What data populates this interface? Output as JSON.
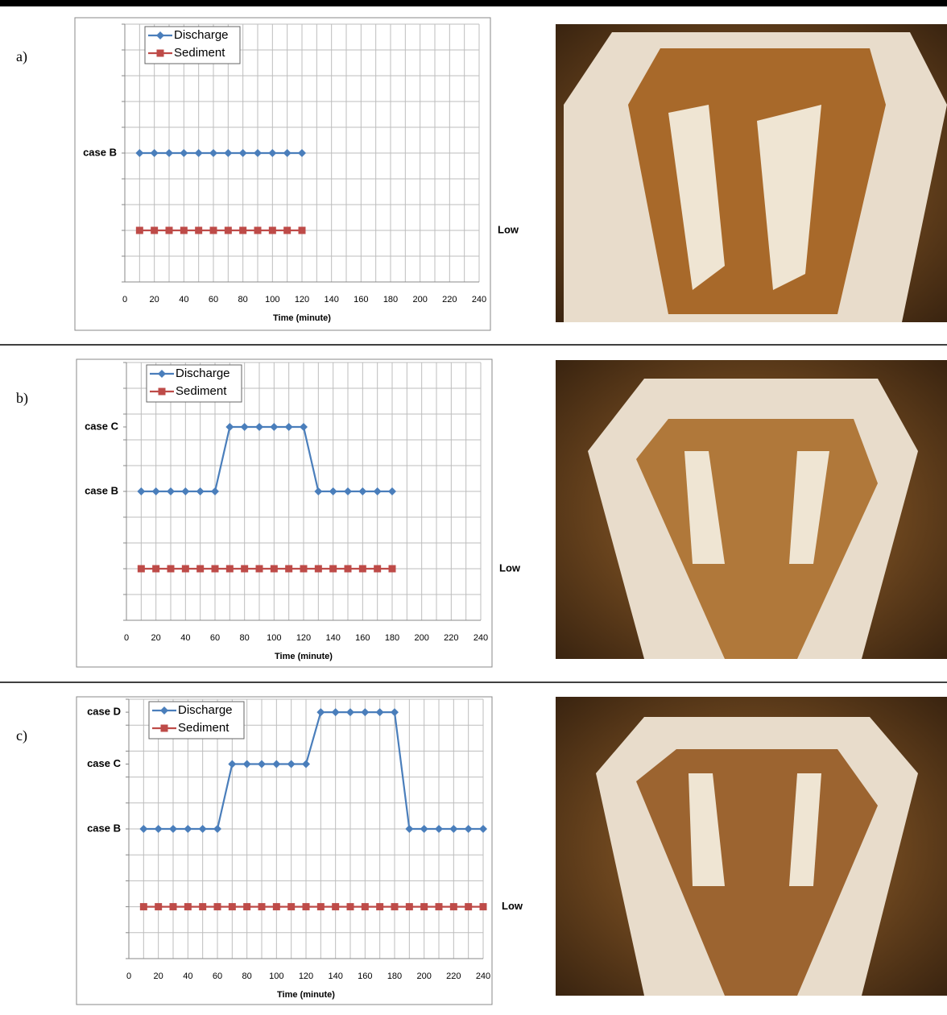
{
  "chart_data": [
    {
      "type": "line",
      "panel_label": "a)",
      "x_label": "Time (minute)",
      "legend": "upper left",
      "grid": true,
      "xlim": [
        0,
        240
      ],
      "ylim": [
        0,
        10
      ],
      "y2lim": [
        0,
        10
      ],
      "xticks": [
        0,
        {
          "value": 10,
          "label": null
        },
        20,
        {
          "value": 30,
          "label": null
        },
        40,
        {
          "value": 50,
          "label": null
        },
        60,
        {
          "value": 70,
          "label": null
        },
        80,
        {
          "value": 90,
          "label": null
        },
        100,
        {
          "value": 110,
          "label": null
        },
        120,
        {
          "value": 130,
          "label": null
        },
        140,
        {
          "value": 150,
          "label": null
        },
        160,
        {
          "value": 170,
          "label": null
        },
        180,
        {
          "value": 190,
          "label": null
        },
        200,
        {
          "value": 210,
          "label": null
        },
        220,
        {
          "value": 230,
          "label": null
        },
        240
      ],
      "yticks": [
        {
          "value": 0,
          "label": null
        },
        {
          "value": 1,
          "label": null
        },
        {
          "value": 2,
          "label": null
        },
        {
          "value": 3,
          "label": null
        },
        {
          "value": 4,
          "label": null
        },
        {
          "value": 5,
          "label": "case B"
        },
        {
          "value": 6,
          "label": null
        },
        {
          "value": 7,
          "label": null
        },
        {
          "value": 8,
          "label": null
        },
        {
          "value": 9,
          "label": null
        },
        {
          "value": 10,
          "label": null
        }
      ],
      "y2ticks": [
        {
          "value": 2,
          "label": "Low"
        }
      ],
      "x": [
        10,
        20,
        30,
        40,
        50,
        60,
        70,
        80,
        90,
        100,
        110,
        120
      ],
      "series": [
        {
          "name": "Discharge",
          "color": "#4a7ebb",
          "marker": "diamond",
          "values": [
            5,
            5,
            5,
            5,
            5,
            5,
            5,
            5,
            5,
            5,
            5,
            5
          ]
        },
        {
          "name": "Sediment",
          "color": "#be4b48",
          "marker": "square",
          "axis": "y2",
          "values": [
            2,
            2,
            2,
            2,
            2,
            2,
            2,
            2,
            2,
            2,
            2,
            2
          ]
        }
      ]
    },
    {
      "type": "line",
      "panel_label": "b)",
      "x_label": "Time (minute)",
      "legend": "upper left",
      "grid": true,
      "xlim": [
        0,
        240
      ],
      "ylim": [
        0,
        10
      ],
      "y2lim": [
        0,
        10
      ],
      "xticks": [
        0,
        {
          "value": 10,
          "label": null
        },
        20,
        {
          "value": 30,
          "label": null
        },
        40,
        {
          "value": 50,
          "label": null
        },
        60,
        {
          "value": 70,
          "label": null
        },
        80,
        {
          "value": 90,
          "label": null
        },
        100,
        {
          "value": 110,
          "label": null
        },
        120,
        {
          "value": 130,
          "label": null
        },
        140,
        {
          "value": 150,
          "label": null
        },
        160,
        {
          "value": 170,
          "label": null
        },
        180,
        {
          "value": 190,
          "label": null
        },
        200,
        {
          "value": 210,
          "label": null
        },
        220,
        {
          "value": 230,
          "label": null
        },
        240
      ],
      "yticks": [
        {
          "value": 0,
          "label": null
        },
        {
          "value": 1,
          "label": null
        },
        {
          "value": 2,
          "label": null
        },
        {
          "value": 3,
          "label": null
        },
        {
          "value": 4,
          "label": null
        },
        {
          "value": 5,
          "label": "case B"
        },
        {
          "value": 6,
          "label": null
        },
        {
          "value": 7,
          "label": null
        },
        {
          "value": 7.5,
          "label": "case C"
        },
        {
          "value": 8,
          "label": null
        },
        {
          "value": 9,
          "label": null
        },
        {
          "value": 10,
          "label": null
        }
      ],
      "y2ticks": [
        {
          "value": 2,
          "label": "Low"
        }
      ],
      "x": [
        10,
        20,
        30,
        40,
        50,
        60,
        70,
        80,
        90,
        100,
        110,
        120,
        130,
        140,
        150,
        160,
        170,
        180
      ],
      "series": [
        {
          "name": "Discharge",
          "color": "#4a7ebb",
          "marker": "diamond",
          "values": [
            5,
            5,
            5,
            5,
            5,
            5,
            7.5,
            7.5,
            7.5,
            7.5,
            7.5,
            7.5,
            5,
            5,
            5,
            5,
            5,
            5
          ]
        },
        {
          "name": "Sediment",
          "color": "#be4b48",
          "marker": "square",
          "axis": "y2",
          "values": [
            2,
            2,
            2,
            2,
            2,
            2,
            2,
            2,
            2,
            2,
            2,
            2,
            2,
            2,
            2,
            2,
            2,
            2
          ]
        }
      ]
    },
    {
      "type": "line",
      "panel_label": "c)",
      "x_label": "Time (minute)",
      "legend": "upper left",
      "grid": true,
      "xlim": [
        0,
        240
      ],
      "ylim": [
        0,
        10
      ],
      "y2lim": [
        0,
        10
      ],
      "xticks": [
        0,
        {
          "value": 10,
          "label": null
        },
        20,
        {
          "value": 30,
          "label": null
        },
        40,
        {
          "value": 50,
          "label": null
        },
        60,
        {
          "value": 70,
          "label": null
        },
        80,
        {
          "value": 90,
          "label": null
        },
        100,
        {
          "value": 110,
          "label": null
        },
        120,
        {
          "value": 130,
          "label": null
        },
        140,
        {
          "value": 150,
          "label": null
        },
        160,
        {
          "value": 170,
          "label": null
        },
        180,
        {
          "value": 190,
          "label": null
        },
        200,
        {
          "value": 210,
          "label": null
        },
        220,
        {
          "value": 230,
          "label": null
        },
        240
      ],
      "yticks": [
        {
          "value": 0,
          "label": null
        },
        {
          "value": 1,
          "label": null
        },
        {
          "value": 2,
          "label": null
        },
        {
          "value": 3,
          "label": null
        },
        {
          "value": 4,
          "label": null
        },
        {
          "value": 5,
          "label": "case B"
        },
        {
          "value": 6,
          "label": null
        },
        {
          "value": 7,
          "label": null
        },
        {
          "value": 7.5,
          "label": "case C"
        },
        {
          "value": 8,
          "label": null
        },
        {
          "value": 9,
          "label": null
        },
        {
          "value": 9.5,
          "label": "case D"
        },
        {
          "value": 10,
          "label": null
        }
      ],
      "y2ticks": [
        {
          "value": 2,
          "label": "Low"
        }
      ],
      "x": [
        10,
        20,
        30,
        40,
        50,
        60,
        70,
        80,
        90,
        100,
        110,
        120,
        130,
        140,
        150,
        160,
        170,
        180,
        190,
        200,
        210,
        220,
        230,
        240
      ],
      "series": [
        {
          "name": "Discharge",
          "color": "#4a7ebb",
          "marker": "diamond",
          "values": [
            5,
            5,
            5,
            5,
            5,
            5,
            7.5,
            7.5,
            7.5,
            7.5,
            7.5,
            7.5,
            9.5,
            9.5,
            9.5,
            9.5,
            9.5,
            9.5,
            5,
            5,
            5,
            5,
            5,
            5
          ]
        },
        {
          "name": "Sediment",
          "color": "#be4b48",
          "marker": "square",
          "axis": "y2",
          "values": [
            2,
            2,
            2,
            2,
            2,
            2,
            2,
            2,
            2,
            2,
            2,
            2,
            2,
            2,
            2,
            2,
            2,
            2,
            2,
            2,
            2,
            2,
            2,
            2
          ]
        }
      ]
    }
  ]
}
